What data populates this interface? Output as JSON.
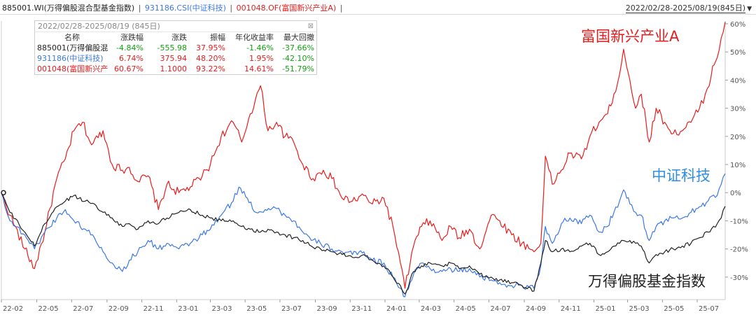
{
  "header": {
    "series_labels": [
      "885001.WI(万得偏股混合型基金指数)",
      "931186.CSI(中证科技)",
      "001048.OF(富国新兴产业A)"
    ],
    "separator": "|",
    "trailing": "|",
    "range_label": "2022/02/28-2025/08/19(845日)",
    "caret": "▼"
  },
  "colors": {
    "fund": "#e81c1c",
    "tech": "#3a78e8",
    "index": "#222222",
    "tech_label": "#2f8fe6",
    "positive": "#e81c1c",
    "negative": "#12a012"
  },
  "stats_table": {
    "range": "2022/02/28-2025/08/19 (845日)",
    "close_icon": "⊠",
    "columns": [
      "名称",
      "涨跌幅",
      "涨跌",
      "振幅",
      "年化收益率",
      "最大回撤"
    ],
    "rows": [
      {
        "name": "885001(万得偏股混",
        "values": [
          "-4.84%",
          "-555.98",
          "37.95%",
          "-1.46%",
          "-37.66%"
        ]
      },
      {
        "name": "931186(中证科技)",
        "values": [
          "6.74%",
          "375.94",
          "48.20%",
          "1.95%",
          "-42.10%"
        ]
      },
      {
        "name": "001048(富国新兴产",
        "values": [
          "60.67%",
          "1.1000",
          "93.22%",
          "14.61%",
          "-51.79%"
        ]
      }
    ]
  },
  "annotations": {
    "fund": "富国新兴产业A",
    "tech": "中证科技",
    "index": "万得偏股基金指数"
  },
  "chart_data": {
    "type": "line",
    "x_ticks": [
      "22-02",
      "22-05",
      "22-07",
      "22-09",
      "22-11",
      "23-01",
      "23-03",
      "23-05",
      "23-07",
      "23-09",
      "23-11",
      "24-01",
      "24-03",
      "24-05",
      "24-07",
      "24-09",
      "24-11",
      "25-01",
      "25-03",
      "25-05",
      "25-07"
    ],
    "y_ticks": [
      "60%",
      "50%",
      "40%",
      "30%",
      "20%",
      "10%",
      "0%",
      "-10%",
      "-20%",
      "-30%"
    ],
    "ylim": [
      -38,
      61
    ],
    "x_start": "2022-02-28",
    "x_end": "2025-08-19",
    "grid": false,
    "series": [
      {
        "name": "富国新兴产业A",
        "points": [
          [
            "2022-02-28",
            0
          ],
          [
            "2022-03-15",
            -8
          ],
          [
            "2022-04-10",
            -20
          ],
          [
            "2022-04-27",
            -27
          ],
          [
            "2022-05-15",
            -14
          ],
          [
            "2022-06-05",
            5
          ],
          [
            "2022-06-20",
            12
          ],
          [
            "2022-07-05",
            22
          ],
          [
            "2022-07-20",
            25
          ],
          [
            "2022-08-05",
            17
          ],
          [
            "2022-08-25",
            22
          ],
          [
            "2022-09-10",
            10
          ],
          [
            "2022-09-28",
            8
          ],
          [
            "2022-10-10",
            9
          ],
          [
            "2022-10-25",
            4
          ],
          [
            "2022-11-12",
            6
          ],
          [
            "2022-11-30",
            -6
          ],
          [
            "2022-12-15",
            3
          ],
          [
            "2023-01-05",
            0
          ],
          [
            "2023-01-25",
            2
          ],
          [
            "2023-02-15",
            6
          ],
          [
            "2023-03-01",
            10
          ],
          [
            "2023-03-20",
            20
          ],
          [
            "2023-04-10",
            25
          ],
          [
            "2023-04-25",
            18
          ],
          [
            "2023-05-10",
            28
          ],
          [
            "2023-05-28",
            38
          ],
          [
            "2023-06-10",
            22
          ],
          [
            "2023-06-25",
            25
          ],
          [
            "2023-07-10",
            20
          ],
          [
            "2023-07-25",
            18
          ],
          [
            "2023-08-10",
            10
          ],
          [
            "2023-08-28",
            5
          ],
          [
            "2023-09-15",
            8
          ],
          [
            "2023-09-30",
            5
          ],
          [
            "2023-10-18",
            -2
          ],
          [
            "2023-11-05",
            -3
          ],
          [
            "2023-11-25",
            -1
          ],
          [
            "2023-12-10",
            -4
          ],
          [
            "2023-12-30",
            -2
          ],
          [
            "2024-01-15",
            -12
          ],
          [
            "2024-01-28",
            -25
          ],
          [
            "2024-02-05",
            -34
          ],
          [
            "2024-02-20",
            -19
          ],
          [
            "2024-03-05",
            -12
          ],
          [
            "2024-03-20",
            -10
          ],
          [
            "2024-04-10",
            -17
          ],
          [
            "2024-04-25",
            -12
          ],
          [
            "2024-05-10",
            -16
          ],
          [
            "2024-05-28",
            -13
          ],
          [
            "2024-06-15",
            -20
          ],
          [
            "2024-07-05",
            -8
          ],
          [
            "2024-07-20",
            -10
          ],
          [
            "2024-08-10",
            -15
          ],
          [
            "2024-08-28",
            -18
          ],
          [
            "2024-09-18",
            -21
          ],
          [
            "2024-09-30",
            -18
          ],
          [
            "2024-10-08",
            13
          ],
          [
            "2024-10-20",
            3
          ],
          [
            "2024-11-05",
            8
          ],
          [
            "2024-11-20",
            14
          ],
          [
            "2024-12-10",
            12
          ],
          [
            "2024-12-25",
            20
          ],
          [
            "2025-01-10",
            25
          ],
          [
            "2025-01-25",
            28
          ],
          [
            "2025-02-05",
            35
          ],
          [
            "2025-02-15",
            42
          ],
          [
            "2025-02-22",
            51
          ],
          [
            "2025-03-05",
            40
          ],
          [
            "2025-03-15",
            30
          ],
          [
            "2025-03-25",
            35
          ],
          [
            "2025-04-08",
            18
          ],
          [
            "2025-04-20",
            30
          ],
          [
            "2025-05-05",
            25
          ],
          [
            "2025-05-20",
            21
          ],
          [
            "2025-06-05",
            22
          ],
          [
            "2025-06-20",
            25
          ],
          [
            "2025-07-05",
            30
          ],
          [
            "2025-07-15",
            35
          ],
          [
            "2025-07-22",
            38
          ],
          [
            "2025-07-28",
            45
          ],
          [
            "2025-08-05",
            48
          ],
          [
            "2025-08-12",
            55
          ],
          [
            "2025-08-19",
            60.67
          ]
        ]
      },
      {
        "name": "中证科技",
        "points": [
          [
            "2022-02-28",
            0
          ],
          [
            "2022-03-15",
            -10
          ],
          [
            "2022-04-10",
            -15
          ],
          [
            "2022-04-27",
            -20
          ],
          [
            "2022-05-15",
            -14
          ],
          [
            "2022-06-05",
            -9
          ],
          [
            "2022-06-20",
            -6
          ],
          [
            "2022-07-05",
            -10
          ],
          [
            "2022-07-25",
            -13
          ],
          [
            "2022-08-10",
            -16
          ],
          [
            "2022-08-25",
            -21
          ],
          [
            "2022-09-10",
            -25
          ],
          [
            "2022-09-28",
            -28
          ],
          [
            "2022-10-10",
            -24
          ],
          [
            "2022-10-25",
            -21
          ],
          [
            "2022-11-12",
            -17
          ],
          [
            "2022-11-30",
            -20
          ],
          [
            "2022-12-15",
            -18
          ],
          [
            "2023-01-05",
            -20
          ],
          [
            "2023-01-25",
            -18
          ],
          [
            "2023-02-15",
            -15
          ],
          [
            "2023-03-01",
            -13
          ],
          [
            "2023-03-20",
            -8
          ],
          [
            "2023-04-10",
            -3
          ],
          [
            "2023-04-20",
            2
          ],
          [
            "2023-05-05",
            -2
          ],
          [
            "2023-05-20",
            -7
          ],
          [
            "2023-06-05",
            -6
          ],
          [
            "2023-06-20",
            -5
          ],
          [
            "2023-07-10",
            -8
          ],
          [
            "2023-07-25",
            -10
          ],
          [
            "2023-08-10",
            -14
          ],
          [
            "2023-08-25",
            -17
          ],
          [
            "2023-09-10",
            -18
          ],
          [
            "2023-09-30",
            -20
          ],
          [
            "2023-10-18",
            -21
          ],
          [
            "2023-11-05",
            -22
          ],
          [
            "2023-11-25",
            -21
          ],
          [
            "2023-12-10",
            -24
          ],
          [
            "2023-12-30",
            -25
          ],
          [
            "2024-01-15",
            -30
          ],
          [
            "2024-01-28",
            -34
          ],
          [
            "2024-02-05",
            -37
          ],
          [
            "2024-02-20",
            -29
          ],
          [
            "2024-03-05",
            -25
          ],
          [
            "2024-03-20",
            -27
          ],
          [
            "2024-04-10",
            -28
          ],
          [
            "2024-04-25",
            -27
          ],
          [
            "2024-05-10",
            -28
          ],
          [
            "2024-05-28",
            -27
          ],
          [
            "2024-06-15",
            -30
          ],
          [
            "2024-07-05",
            -31
          ],
          [
            "2024-07-20",
            -32
          ],
          [
            "2024-08-10",
            -33
          ],
          [
            "2024-08-28",
            -33
          ],
          [
            "2024-09-18",
            -34
          ],
          [
            "2024-09-30",
            -26
          ],
          [
            "2024-10-08",
            -12
          ],
          [
            "2024-10-20",
            -18
          ],
          [
            "2024-11-05",
            -11
          ],
          [
            "2024-11-20",
            -9
          ],
          [
            "2024-12-10",
            -11
          ],
          [
            "2024-12-25",
            -8
          ],
          [
            "2025-01-10",
            -14
          ],
          [
            "2025-01-25",
            -12
          ],
          [
            "2025-02-05",
            -7
          ],
          [
            "2025-02-15",
            -3
          ],
          [
            "2025-02-22",
            1
          ],
          [
            "2025-03-05",
            -4
          ],
          [
            "2025-03-15",
            -7
          ],
          [
            "2025-03-25",
            -8
          ],
          [
            "2025-04-08",
            -17
          ],
          [
            "2025-04-20",
            -12
          ],
          [
            "2025-05-05",
            -10
          ],
          [
            "2025-05-20",
            -9
          ],
          [
            "2025-06-05",
            -9
          ],
          [
            "2025-06-20",
            -7
          ],
          [
            "2025-07-05",
            -5
          ],
          [
            "2025-07-20",
            -3
          ],
          [
            "2025-08-05",
            -1
          ],
          [
            "2025-08-12",
            3
          ],
          [
            "2025-08-19",
            6.74
          ]
        ]
      },
      {
        "name": "万得偏股基金指数",
        "points": [
          [
            "2022-02-28",
            0
          ],
          [
            "2022-03-15",
            -7
          ],
          [
            "2022-04-10",
            -14
          ],
          [
            "2022-04-27",
            -19
          ],
          [
            "2022-05-15",
            -11
          ],
          [
            "2022-06-05",
            -5
          ],
          [
            "2022-06-20",
            -3
          ],
          [
            "2022-07-05",
            -1
          ],
          [
            "2022-07-25",
            -3
          ],
          [
            "2022-08-10",
            -4
          ],
          [
            "2022-08-25",
            -7
          ],
          [
            "2022-09-10",
            -9
          ],
          [
            "2022-09-28",
            -12
          ],
          [
            "2022-10-10",
            -11
          ],
          [
            "2022-10-25",
            -13
          ],
          [
            "2022-11-12",
            -10
          ],
          [
            "2022-11-30",
            -11
          ],
          [
            "2022-12-15",
            -9
          ],
          [
            "2023-01-05",
            -7
          ],
          [
            "2023-01-25",
            -6
          ],
          [
            "2023-02-15",
            -8
          ],
          [
            "2023-03-01",
            -9
          ],
          [
            "2023-03-20",
            -10
          ],
          [
            "2023-04-10",
            -10
          ],
          [
            "2023-04-25",
            -12
          ],
          [
            "2023-05-10",
            -13
          ],
          [
            "2023-05-28",
            -14
          ],
          [
            "2023-06-10",
            -13
          ],
          [
            "2023-06-25",
            -14
          ],
          [
            "2023-07-10",
            -15
          ],
          [
            "2023-07-25",
            -16
          ],
          [
            "2023-08-10",
            -17
          ],
          [
            "2023-08-25",
            -19
          ],
          [
            "2023-09-10",
            -20
          ],
          [
            "2023-09-30",
            -21
          ],
          [
            "2023-10-18",
            -22
          ],
          [
            "2023-11-05",
            -23
          ],
          [
            "2023-11-25",
            -22
          ],
          [
            "2023-12-10",
            -24
          ],
          [
            "2023-12-30",
            -26
          ],
          [
            "2024-01-15",
            -30
          ],
          [
            "2024-01-28",
            -33
          ],
          [
            "2024-02-05",
            -36
          ],
          [
            "2024-02-20",
            -28
          ],
          [
            "2024-03-05",
            -26
          ],
          [
            "2024-03-20",
            -25
          ],
          [
            "2024-04-10",
            -26
          ],
          [
            "2024-04-25",
            -25
          ],
          [
            "2024-05-10",
            -27
          ],
          [
            "2024-05-28",
            -26
          ],
          [
            "2024-06-15",
            -29
          ],
          [
            "2024-07-05",
            -30
          ],
          [
            "2024-07-20",
            -31
          ],
          [
            "2024-08-10",
            -32
          ],
          [
            "2024-08-28",
            -33
          ],
          [
            "2024-09-18",
            -35
          ],
          [
            "2024-09-30",
            -25
          ],
          [
            "2024-10-08",
            -17
          ],
          [
            "2024-10-20",
            -21
          ],
          [
            "2024-11-05",
            -20
          ],
          [
            "2024-11-20",
            -21
          ],
          [
            "2024-12-10",
            -19
          ],
          [
            "2024-12-25",
            -18
          ],
          [
            "2025-01-10",
            -22
          ],
          [
            "2025-01-25",
            -21
          ],
          [
            "2025-02-05",
            -19
          ],
          [
            "2025-02-15",
            -18
          ],
          [
            "2025-02-22",
            -17
          ],
          [
            "2025-03-05",
            -17
          ],
          [
            "2025-03-15",
            -18
          ],
          [
            "2025-03-25",
            -19
          ],
          [
            "2025-04-08",
            -25
          ],
          [
            "2025-04-20",
            -22
          ],
          [
            "2025-05-05",
            -21
          ],
          [
            "2025-05-20",
            -20
          ],
          [
            "2025-06-05",
            -19
          ],
          [
            "2025-06-20",
            -18
          ],
          [
            "2025-07-05",
            -16
          ],
          [
            "2025-07-20",
            -14
          ],
          [
            "2025-08-05",
            -11
          ],
          [
            "2025-08-12",
            -9
          ],
          [
            "2025-08-19",
            -4.84
          ]
        ]
      }
    ]
  }
}
